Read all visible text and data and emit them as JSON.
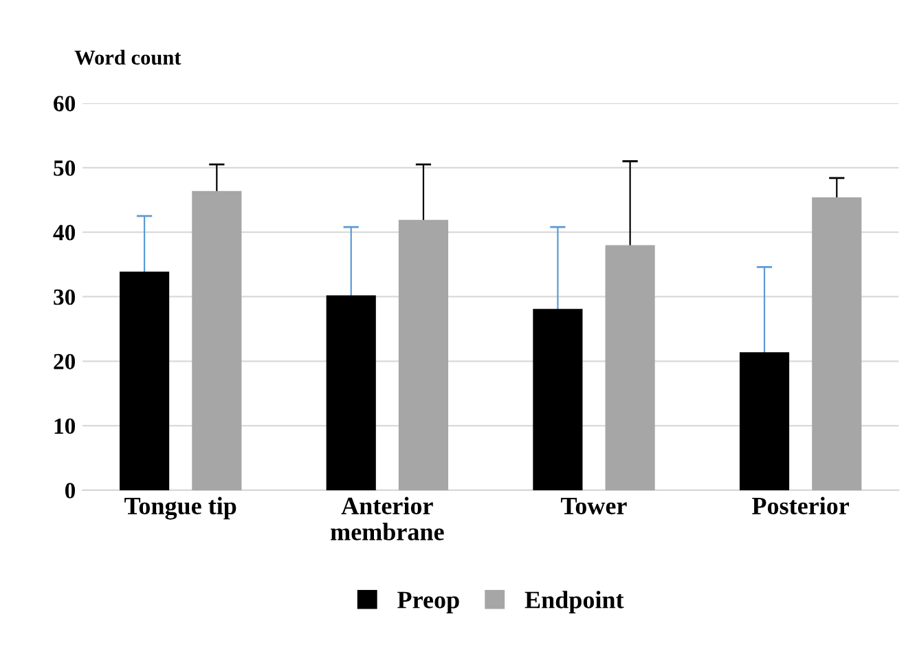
{
  "chart_data": {
    "type": "bar",
    "ylabel": "Word count",
    "categories": [
      "Tongue tip",
      "Anterior\nmembrane",
      "Tower",
      "Posterior"
    ],
    "series": [
      {
        "name": "Preop",
        "color": "#000000",
        "values": [
          33.9,
          30.2,
          28.1,
          21.4
        ],
        "errors": [
          8.6,
          10.6,
          12.7,
          13.2
        ]
      },
      {
        "name": "Endpoint",
        "color": "#a6a6a6",
        "values": [
          46.4,
          41.9,
          38.0,
          45.4
        ],
        "errors": [
          4.1,
          8.6,
          13.0,
          3.0
        ]
      }
    ],
    "ylim": [
      0,
      60
    ],
    "yticks": [
      0,
      10,
      20,
      30,
      40,
      50,
      60
    ],
    "grid": "y",
    "legend": "bottom"
  }
}
